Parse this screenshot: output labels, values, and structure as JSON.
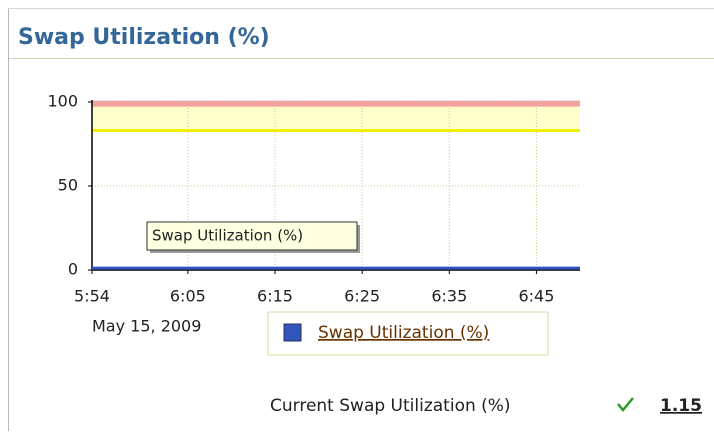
{
  "header": {
    "title": "Swap Utilization (%)"
  },
  "chart_data": {
    "type": "line",
    "x": [
      354,
      362,
      370,
      378,
      386,
      394,
      402,
      410
    ],
    "series": [
      {
        "name": "Swap Utilization (%)",
        "color": "#3355bb",
        "values": [
          1.15,
          1.15,
          1.15,
          1.15,
          1.15,
          1.15,
          1.15,
          1.15
        ]
      }
    ],
    "xlim": [
      354,
      410
    ],
    "xticks": [
      {
        "value": 354,
        "label": "5:54"
      },
      {
        "value": 365,
        "label": "6:05"
      },
      {
        "value": 375,
        "label": "6:15"
      },
      {
        "value": 385,
        "label": "6:25"
      },
      {
        "value": 395,
        "label": "6:35"
      },
      {
        "value": 405,
        "label": "6:45"
      }
    ],
    "date_label": "May 15, 2009",
    "ylim": [
      0,
      100
    ],
    "yticks": [
      0,
      50,
      100
    ],
    "grid": true,
    "warning_line": 83,
    "critical_line": 99,
    "tooltip": "Swap Utilization (%)"
  },
  "footer": {
    "label": "Current Swap Utilization (%)",
    "value": 1.15
  }
}
